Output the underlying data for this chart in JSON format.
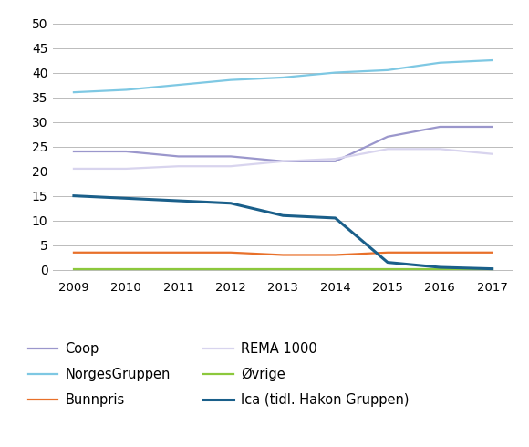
{
  "years": [
    2009,
    2010,
    2011,
    2012,
    2013,
    2014,
    2015,
    2016,
    2017
  ],
  "series": {
    "Coop": {
      "values": [
        24,
        24,
        23,
        23,
        22,
        22,
        27,
        29,
        29
      ],
      "color": "#9b97cc",
      "linewidth": 1.6
    },
    "NorgesGruppen": {
      "values": [
        36,
        36.5,
        37.5,
        38.5,
        39,
        40,
        40.5,
        42,
        42.5
      ],
      "color": "#7ec8e3",
      "linewidth": 1.6
    },
    "Bunnpris": {
      "values": [
        3.5,
        3.5,
        3.5,
        3.5,
        3.0,
        3.0,
        3.5,
        3.5,
        3.5
      ],
      "color": "#e8702a",
      "linewidth": 1.6
    },
    "REMA 1000": {
      "values": [
        20.5,
        20.5,
        21,
        21,
        22,
        22.5,
        24.5,
        24.5,
        23.5
      ],
      "color": "#d8d4ee",
      "linewidth": 1.6
    },
    "Øvrige": {
      "values": [
        0.2,
        0.2,
        0.2,
        0.2,
        0.2,
        0.2,
        0.2,
        0.2,
        0.2
      ],
      "color": "#8cc83c",
      "linewidth": 1.6
    },
    "Ica (tidl. Hakon Gruppen)": {
      "values": [
        15,
        14.5,
        14,
        13.5,
        11,
        10.5,
        1.5,
        0.5,
        0.2
      ],
      "color": "#1a5f8a",
      "linewidth": 2.2
    }
  },
  "ylim": [
    -1.5,
    52
  ],
  "yticks": [
    0,
    5,
    10,
    15,
    20,
    25,
    30,
    35,
    40,
    45,
    50
  ],
  "ytick_labels": [
    "0",
    "5",
    "10",
    "15",
    "20",
    "25",
    "30",
    "35",
    "40",
    "45",
    "50"
  ],
  "background_color": "#ffffff",
  "grid_color": "#bbbbbb",
  "legend_order": [
    "Coop",
    "NorgesGruppen",
    "Bunnpris",
    "REMA 1000",
    "Øvrige",
    "Ica (tidl. Hakon Gruppen)"
  ],
  "axis_fontsize": 10,
  "legend_fontsize": 10.5
}
